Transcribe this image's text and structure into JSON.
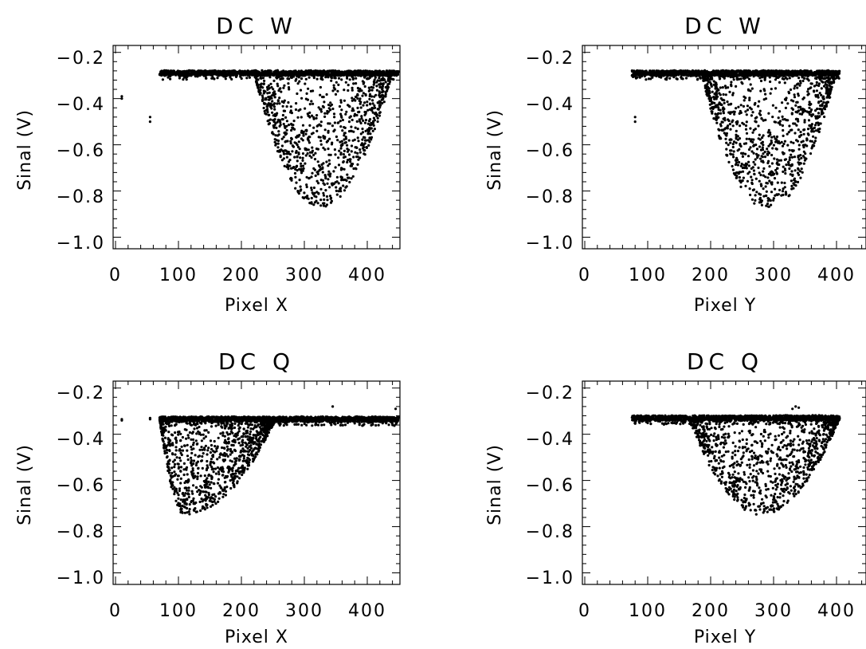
{
  "chart_data": [
    {
      "type": "scatter",
      "title": "DC W",
      "xlabel": "Pixel X",
      "ylabel": "Sinal (V)",
      "xlim": [
        0,
        450
      ],
      "ylim": [
        -1.05,
        -0.17
      ],
      "x_ticks": [
        0,
        100,
        200,
        300,
        400
      ],
      "y_ticks": [
        -0.2,
        -0.4,
        -0.6,
        -0.8,
        -1.0
      ],
      "x_tick_labels": [
        "0",
        "100",
        "200",
        "300",
        "400"
      ],
      "y_tick_labels": [
        "−0.2",
        "−0.4",
        "−0.6",
        "−0.8",
        "−1.0"
      ],
      "grid": false,
      "series": [
        {
          "baseline": -0.29,
          "baseline_x_range": [
            70,
            450
          ],
          "dip": {
            "x_start": 220,
            "x_end": 440,
            "x_min": 325,
            "y_min": -0.87
          },
          "outliers": [
            {
              "x": 10,
              "y": -0.39
            },
            {
              "x": 10,
              "y": -0.4
            },
            {
              "x": 55,
              "y": -0.48
            },
            {
              "x": 55,
              "y": -0.5
            }
          ]
        }
      ]
    },
    {
      "type": "scatter",
      "title": "DC W",
      "xlabel": "Pixel Y",
      "ylabel": "Sinal (V)",
      "xlim": [
        0,
        450
      ],
      "ylim": [
        -1.05,
        -0.17
      ],
      "x_ticks": [
        0,
        100,
        200,
        300,
        400
      ],
      "y_ticks": [
        -0.2,
        -0.4,
        -0.6,
        -0.8,
        -1.0
      ],
      "x_tick_labels": [
        "0",
        "100",
        "200",
        "300",
        "400"
      ],
      "y_tick_labels": [
        "−0.2",
        "−0.4",
        "−0.6",
        "−0.8",
        "−1.0"
      ],
      "grid": false,
      "series": [
        {
          "baseline": -0.29,
          "baseline_x_range": [
            75,
            405
          ],
          "dip": {
            "x_start": 185,
            "x_end": 400,
            "x_min": 290,
            "y_min": -0.88
          },
          "outliers": [
            {
              "x": 80,
              "y": -0.48
            },
            {
              "x": 80,
              "y": -0.5
            }
          ]
        }
      ]
    },
    {
      "type": "scatter",
      "title": "DC Q",
      "xlabel": "Pixel X",
      "ylabel": "Sinal (V)",
      "xlim": [
        0,
        450
      ],
      "ylim": [
        -1.05,
        -0.17
      ],
      "x_ticks": [
        0,
        100,
        200,
        300,
        400
      ],
      "y_ticks": [
        -0.2,
        -0.4,
        -0.6,
        -0.8,
        -1.0
      ],
      "x_tick_labels": [
        "0",
        "100",
        "200",
        "300",
        "400"
      ],
      "y_tick_labels": [
        "−0.2",
        "−0.4",
        "−0.6",
        "−0.8",
        "−1.0"
      ],
      "grid": false,
      "series": [
        {
          "baseline": -0.335,
          "baseline_x_range": [
            70,
            450
          ],
          "dip": {
            "x_start": 70,
            "x_end": 255,
            "x_min": 110,
            "y_min": -0.75
          },
          "outliers": [
            {
              "x": 10,
              "y": -0.335
            },
            {
              "x": 10,
              "y": -0.34
            },
            {
              "x": 55,
              "y": -0.33
            },
            {
              "x": 55,
              "y": -0.335
            },
            {
              "x": 345,
              "y": -0.28
            },
            {
              "x": 445,
              "y": -0.29
            }
          ]
        }
      ]
    },
    {
      "type": "scatter",
      "title": "DC Q",
      "xlabel": "Pixel Y",
      "ylabel": "Sinal (V)",
      "xlim": [
        0,
        450
      ],
      "ylim": [
        -1.05,
        -0.17
      ],
      "x_ticks": [
        0,
        100,
        200,
        300,
        400
      ],
      "y_ticks": [
        -0.2,
        -0.4,
        -0.6,
        -0.8,
        -1.0
      ],
      "x_tick_labels": [
        "0",
        "100",
        "200",
        "300",
        "400"
      ],
      "y_tick_labels": [
        "−0.2",
        "−0.4",
        "−0.6",
        "−0.8",
        "−1.0"
      ],
      "grid": false,
      "series": [
        {
          "baseline": -0.33,
          "baseline_x_range": [
            75,
            405
          ],
          "dip": {
            "x_start": 165,
            "x_end": 405,
            "x_min": 280,
            "y_min": -0.75
          },
          "outliers": [
            {
              "x": 335,
              "y": -0.28
            },
            {
              "x": 340,
              "y": -0.285
            },
            {
              "x": 330,
              "y": -0.29
            }
          ]
        }
      ]
    }
  ]
}
